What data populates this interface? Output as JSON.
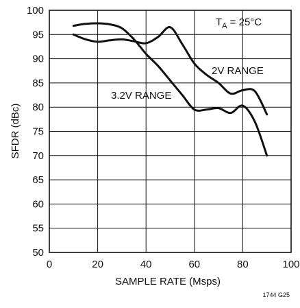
{
  "chart_data": {
    "type": "line",
    "xlabel": "SAMPLE RATE (Msps)",
    "ylabel": "SFDR (dBc)",
    "xlim": [
      0,
      100
    ],
    "ylim": [
      50,
      100
    ],
    "x_ticks": [
      0,
      20,
      40,
      60,
      80,
      100
    ],
    "y_ticks": [
      50,
      55,
      60,
      65,
      70,
      75,
      80,
      85,
      90,
      95,
      100
    ],
    "grid": true,
    "annotations": {
      "temp_main": "T",
      "temp_sub": "A",
      "temp_rest": " = 25°C",
      "label_2v": "2V RANGE",
      "label_32v": "3.2V RANGE",
      "figure_id": "1744 G25"
    },
    "series": [
      {
        "name": "2V RANGE",
        "points": [
          [
            10,
            95
          ],
          [
            15,
            94
          ],
          [
            20,
            93.5
          ],
          [
            25,
            93.8
          ],
          [
            30,
            94
          ],
          [
            35,
            93.6
          ],
          [
            40,
            93.2
          ],
          [
            45,
            94.5
          ],
          [
            50,
            96.5
          ],
          [
            55,
            93
          ],
          [
            60,
            89
          ],
          [
            65,
            86.7
          ],
          [
            70,
            85
          ],
          [
            75,
            82.8
          ],
          [
            80,
            83.5
          ],
          [
            85,
            83.3
          ],
          [
            90,
            78.5
          ]
        ]
      },
      {
        "name": "3.2V RANGE",
        "points": [
          [
            10,
            96.8
          ],
          [
            15,
            97.2
          ],
          [
            20,
            97.3
          ],
          [
            25,
            97.1
          ],
          [
            30,
            96.3
          ],
          [
            35,
            94
          ],
          [
            40,
            91
          ],
          [
            45,
            88.5
          ],
          [
            50,
            85.5
          ],
          [
            55,
            82.5
          ],
          [
            60,
            79.5
          ],
          [
            65,
            79.5
          ],
          [
            70,
            79.8
          ],
          [
            75,
            78.8
          ],
          [
            80,
            80.3
          ],
          [
            85,
            77
          ],
          [
            90,
            70
          ]
        ]
      }
    ]
  }
}
